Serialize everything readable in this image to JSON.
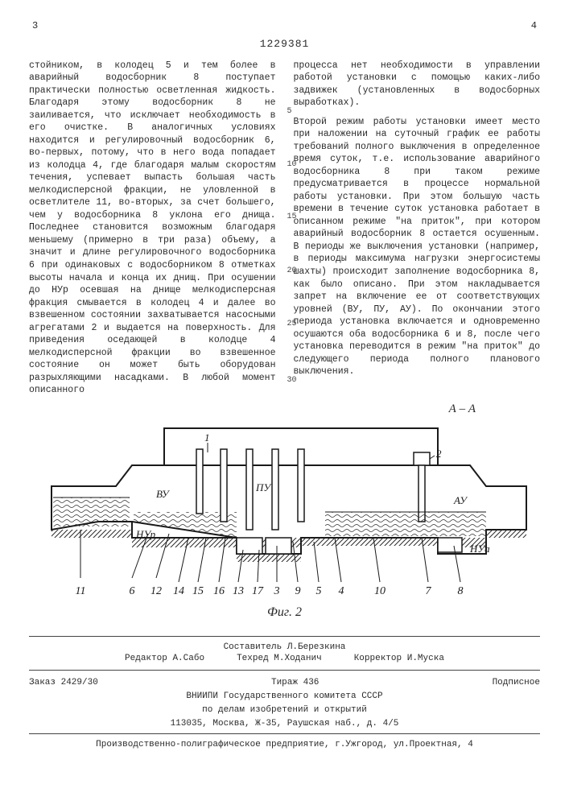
{
  "page": {
    "left_num": "3",
    "right_num": "4",
    "doc_number": "1229381"
  },
  "column_left": {
    "p1": "стойником, в колодец 5 и тем более в аварийный водосборник 8 поступает практически полностью осветленная жидкость. Благодаря этому водосборник 8 не заиливается, что исключает необходимость в его очистке. В аналогичных условиях находится и регулировочный водосборник 6, во-первых, потому, что в него вода попадает из колодца 4, где благодаря малым скоростям течения, успевает выпасть большая часть мелкодисперсной фракции, не уловленной в осветлителе 11, во-вторых, за счет большего, чем у водосборника 8 уклона его днища. Последнее становится возможным благодаря меньшему (примерно в три раза) объему, а значит и длине регулировочного водосборника 6 при одинаковых с водосборником 8 отметках высоты начала и конца их днищ. При осушении до НУр осевшая на днище мелкодисперсная фракция смывается в колодец 4 и далее во взвешенном состоянии захватывается насосными агрегатами 2 и выдается на поверхность. Для приведения оседающей в колодце 4 мелкодисперсной фракции во взвешенное состояние он может быть оборудован разрыхляющими насадками. В любой момент описанного",
    "line_marks": {
      "5": 58,
      "10": 124,
      "15": 189,
      "20": 256,
      "25": 322,
      "30": 392
    }
  },
  "column_right": {
    "p1": "процесса нет необходимости в управлении работой установки с помощью каких-либо задвижек (установленных в водосборных выработках).",
    "p2": "Второй режим работы установки имеет место при наложении на суточный график ее работы требований полного выключения в определенное время суток, т.е. использование аварийного водосборника 8 при таком режиме предусматривается в процессе нормальной работы установки. При этом большую часть времени в течение суток установка работает в описанном режиме \"на приток\", при котором аварийный водосборник 8 остается осушенным. В периоды же выключения установки (например, в периоды максимума нагрузки энергосистемы шахты) происходит заполнение водосборника 8, как было описано. При этом накладывается запрет на включение ее от соответствующих уровней (ВУ, ПУ, АУ). По окончании этого периода установка включается и одновременно осушаются оба водосборника 6 и 8, после чего установка переводится в режим \"на приток\" до следующего периода полного планового выключения."
  },
  "figure": {
    "section_label": "А – А",
    "caption": "Фиг. 2",
    "colors": {
      "stroke": "#1a1a1a",
      "fill_light": "#ffffff",
      "hatch": "#2a2a2a",
      "water": "#d0d0d0"
    },
    "labels": {
      "VY": "ВУ",
      "PY": "ПУ",
      "AY": "АУ",
      "HYp": "НУр",
      "HYa": "НУа",
      "n1": "1",
      "n2": "2",
      "n3": "3",
      "n4": "4",
      "n5": "5",
      "n6": "6",
      "n7": "7",
      "n8": "8",
      "n9": "9",
      "n10": "10",
      "n11": "11",
      "n12": "12",
      "n13": "13",
      "n14": "14",
      "n15": "15",
      "n16": "16",
      "n17": "17"
    },
    "callouts": [
      "11",
      "6",
      "12",
      "14",
      "15",
      "16",
      "13",
      "17",
      "3",
      "9",
      "5",
      "4",
      "10",
      "7",
      "8"
    ]
  },
  "credits": {
    "compiler_label": "Составитель",
    "compiler": "Л.Березкина",
    "editor_label": "Редактор",
    "editor": "А.Сабо",
    "techred_label": "Техред",
    "techred": "М.Ходанич",
    "corrector_label": "Корректор",
    "corrector": "И.Муска"
  },
  "registration": {
    "order": "Заказ 2429/30",
    "tirazh": "Тираж 436",
    "podpisnoe": "Подписное",
    "org1": "ВНИИПИ Государственного комитета СССР",
    "org2": "по делам изобретений и открытий",
    "addr": "113035, Москва, Ж-35, Раушская наб., д. 4/5"
  },
  "printer": "Производственно-полиграфическое предприятие, г.Ужгород, ул.Проектная, 4"
}
